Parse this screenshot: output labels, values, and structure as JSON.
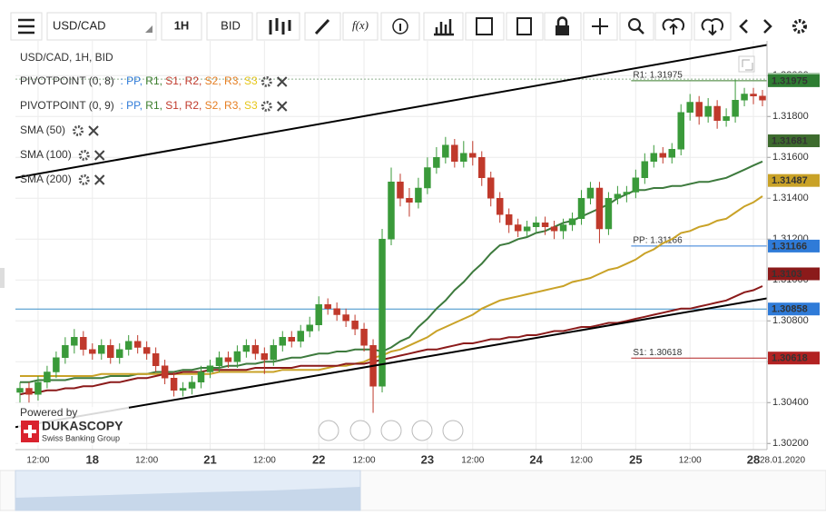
{
  "toolbar": {
    "symbol": "USD/CAD",
    "period": "1H",
    "side": "BID",
    "fx": "f(x)"
  },
  "legend": {
    "title": "USD/CAD, 1H, BID",
    "pivots": [
      {
        "name": "PIVOTPOINT (0, 8)",
        "levels": [
          {
            "text": ": PP,",
            "color": "#2f7bd8"
          },
          {
            "text": " R1,",
            "color": "#3a7d2c"
          },
          {
            "text": " S1,",
            "color": "#c0392b"
          },
          {
            "text": " R2,",
            "color": "#c0392b"
          },
          {
            "text": " S2,",
            "color": "#e67e22"
          },
          {
            "text": " R3,",
            "color": "#e67e22"
          },
          {
            "text": " S3",
            "color": "#e6c619"
          }
        ]
      },
      {
        "name": "PIVOTPOINT (0, 9)",
        "levels": [
          {
            "text": ": PP,",
            "color": "#2f7bd8"
          },
          {
            "text": " R1,",
            "color": "#3a7d2c"
          },
          {
            "text": " S1,",
            "color": "#c0392b"
          },
          {
            "text": " R2,",
            "color": "#c0392b"
          },
          {
            "text": " S2,",
            "color": "#e67e22"
          },
          {
            "text": " R3,",
            "color": "#e67e22"
          },
          {
            "text": " S3",
            "color": "#e6c619"
          }
        ]
      }
    ]
  },
  "branding": {
    "powered": "Powered by",
    "name": "DUKASCOPY",
    "tagline": "Swiss Banking Group"
  },
  "chart_data": {
    "type": "candlestick",
    "categories": [
      null,
      null,
      "12:00",
      null,
      null,
      null,
      null,
      null,
      "18",
      null,
      null,
      null,
      null,
      null,
      "12:00",
      null,
      null,
      null,
      null,
      null,
      null,
      "21",
      null,
      null,
      null,
      null,
      null,
      "12:00",
      null,
      null,
      null,
      null,
      null,
      "22",
      null,
      null,
      null,
      null,
      "12:00",
      null,
      null,
      null,
      null,
      null,
      null,
      "23",
      null,
      null,
      null,
      null,
      "12:00",
      null,
      null,
      null,
      null,
      null,
      null,
      "24",
      null,
      null,
      null,
      null,
      "12:00",
      null,
      null,
      null,
      null,
      null,
      "25",
      null,
      null,
      null,
      null,
      null,
      "12:00",
      null,
      null,
      null,
      null,
      null,
      null,
      "28",
      null
    ],
    "date_label": "28.01.2020",
    "up_color": "#3a9a3a",
    "down_color": "#c0392b",
    "candles": [
      [
        1.3045,
        1.305,
        1.304,
        1.3047
      ],
      [
        1.3047,
        1.305,
        1.304,
        1.3044
      ],
      [
        1.3044,
        1.3053,
        1.3041,
        1.305
      ],
      [
        1.305,
        1.3058,
        1.3047,
        1.3055
      ],
      [
        1.3055,
        1.3065,
        1.3052,
        1.3062
      ],
      [
        1.3062,
        1.3072,
        1.3059,
        1.3068
      ],
      [
        1.3068,
        1.3076,
        1.3064,
        1.3072
      ],
      [
        1.3072,
        1.3075,
        1.3063,
        1.3066
      ],
      [
        1.3066,
        1.3069,
        1.3061,
        1.3064
      ],
      [
        1.3064,
        1.3071,
        1.3061,
        1.3068
      ],
      [
        1.3068,
        1.3071,
        1.3059,
        1.3062
      ],
      [
        1.3062,
        1.3069,
        1.3059,
        1.3066
      ],
      [
        1.3066,
        1.3073,
        1.3063,
        1.307
      ],
      [
        1.307,
        1.3073,
        1.3064,
        1.3067
      ],
      [
        1.3067,
        1.307,
        1.3061,
        1.3064
      ],
      [
        1.3064,
        1.3067,
        1.3055,
        1.3058
      ],
      [
        1.3058,
        1.3061,
        1.3049,
        1.3052
      ],
      [
        1.3052,
        1.3055,
        1.3043,
        1.3046
      ],
      [
        1.3046,
        1.305,
        1.3043,
        1.3047
      ],
      [
        1.3047,
        1.3053,
        1.3044,
        1.305
      ],
      [
        1.305,
        1.3058,
        1.3047,
        1.3055
      ],
      [
        1.3055,
        1.3061,
        1.3052,
        1.3058
      ],
      [
        1.3058,
        1.3065,
        1.3055,
        1.3062
      ],
      [
        1.3062,
        1.3065,
        1.3057,
        1.306
      ],
      [
        1.306,
        1.3068,
        1.3057,
        1.3065
      ],
      [
        1.3065,
        1.3071,
        1.3062,
        1.3068
      ],
      [
        1.3068,
        1.3071,
        1.3061,
        1.3064
      ],
      [
        1.3064,
        1.3067,
        1.3054,
        1.3061
      ],
      [
        1.3061,
        1.3071,
        1.3058,
        1.3068
      ],
      [
        1.3068,
        1.3075,
        1.3065,
        1.3072
      ],
      [
        1.3072,
        1.3075,
        1.3067,
        1.307
      ],
      [
        1.307,
        1.3078,
        1.3067,
        1.3075
      ],
      [
        1.3075,
        1.3082,
        1.3072,
        1.3078
      ],
      [
        1.3078,
        1.3092,
        1.3075,
        1.3088
      ],
      [
        1.3088,
        1.3091,
        1.3083,
        1.3086
      ],
      [
        1.3086,
        1.3089,
        1.308,
        1.3083
      ],
      [
        1.3083,
        1.3086,
        1.3077,
        1.308
      ],
      [
        1.308,
        1.3083,
        1.3073,
        1.3076
      ],
      [
        1.3076,
        1.3079,
        1.3065,
        1.3068
      ],
      [
        1.3068,
        1.3071,
        1.3035,
        1.3048
      ],
      [
        1.3048,
        1.3125,
        1.3045,
        1.312
      ],
      [
        1.312,
        1.3155,
        1.3117,
        1.3148
      ],
      [
        1.3148,
        1.3152,
        1.3136,
        1.314
      ],
      [
        1.314,
        1.3145,
        1.3131,
        1.3138
      ],
      [
        1.3138,
        1.315,
        1.3135,
        1.3145
      ],
      [
        1.3145,
        1.316,
        1.3142,
        1.3155
      ],
      [
        1.3155,
        1.3165,
        1.3152,
        1.316
      ],
      [
        1.316,
        1.317,
        1.3157,
        1.3166
      ],
      [
        1.3166,
        1.3169,
        1.3155,
        1.3158
      ],
      [
        1.3158,
        1.3168,
        1.3155,
        1.3162
      ],
      [
        1.3162,
        1.3168,
        1.3156,
        1.316
      ],
      [
        1.316,
        1.3163,
        1.3146,
        1.315
      ],
      [
        1.315,
        1.3153,
        1.3136,
        1.314
      ],
      [
        1.314,
        1.3143,
        1.3128,
        1.3132
      ],
      [
        1.3132,
        1.3135,
        1.3123,
        1.3127
      ],
      [
        1.3127,
        1.313,
        1.3121,
        1.3124
      ],
      [
        1.3124,
        1.3129,
        1.3121,
        1.3126
      ],
      [
        1.3126,
        1.3131,
        1.3123,
        1.3128
      ],
      [
        1.3128,
        1.3131,
        1.3122,
        1.3126
      ],
      [
        1.3126,
        1.3129,
        1.312,
        1.3124
      ],
      [
        1.3124,
        1.313,
        1.312,
        1.3127
      ],
      [
        1.3127,
        1.3133,
        1.3124,
        1.313
      ],
      [
        1.313,
        1.3144,
        1.3127,
        1.314
      ],
      [
        1.314,
        1.3148,
        1.3137,
        1.3145
      ],
      [
        1.3145,
        1.3148,
        1.3118,
        1.3125
      ],
      [
        1.3125,
        1.3143,
        1.3122,
        1.314
      ],
      [
        1.314,
        1.3146,
        1.3137,
        1.3142
      ],
      [
        1.3142,
        1.3146,
        1.3138,
        1.3143
      ],
      [
        1.3143,
        1.3154,
        1.314,
        1.315
      ],
      [
        1.315,
        1.3162,
        1.3147,
        1.3158
      ],
      [
        1.3158,
        1.3166,
        1.3155,
        1.3162
      ],
      [
        1.3162,
        1.3165,
        1.3157,
        1.316
      ],
      [
        1.316,
        1.3167,
        1.3157,
        1.3164
      ],
      [
        1.3164,
        1.3186,
        1.3161,
        1.3182
      ],
      [
        1.3182,
        1.3191,
        1.3178,
        1.3187
      ],
      [
        1.3187,
        1.319,
        1.3176,
        1.318
      ],
      [
        1.318,
        1.3189,
        1.3177,
        1.3185
      ],
      [
        1.3185,
        1.3188,
        1.3174,
        1.3178
      ],
      [
        1.3178,
        1.3184,
        1.3175,
        1.318
      ],
      [
        1.318,
        1.3198,
        1.3177,
        1.3188
      ],
      [
        1.3188,
        1.3194,
        1.3185,
        1.3191
      ],
      [
        1.3191,
        1.3194,
        1.3186,
        1.319
      ],
      [
        1.319,
        1.3193,
        1.3185,
        1.3188
      ]
    ],
    "series": [
      {
        "name": "SMA (50)",
        "color": "#3d7a3d",
        "values": [
          1.305,
          1.305,
          1.3051,
          1.3051,
          1.3051,
          1.3051,
          1.3052,
          1.3052,
          1.3052,
          1.3052,
          1.3053,
          1.3053,
          1.3053,
          1.3054,
          1.3054,
          1.3055,
          1.3055,
          1.3055,
          1.3056,
          1.3056,
          1.3057,
          1.3057,
          1.3057,
          1.3058,
          1.3058,
          1.3059,
          1.3059,
          1.306,
          1.306,
          1.3061,
          1.3062,
          1.3062,
          1.3063,
          1.3064,
          1.3064,
          1.3065,
          1.3065,
          1.3066,
          1.3066,
          1.3066,
          1.3065,
          1.3067,
          1.307,
          1.3072,
          1.3077,
          1.3081,
          1.3086,
          1.309,
          1.3095,
          1.3099,
          1.3104,
          1.3108,
          1.3113,
          1.3117,
          1.3118,
          1.312,
          1.3121,
          1.3123,
          1.3124,
          1.3126,
          1.3128,
          1.3129,
          1.3131,
          1.3133,
          1.3135,
          1.3137,
          1.314,
          1.3142,
          1.3144,
          1.3144,
          1.3145,
          1.3145,
          1.3146,
          1.3146,
          1.3147,
          1.3148,
          1.3148,
          1.3149,
          1.315,
          1.3152,
          1.3154,
          1.3156,
          1.3158
        ]
      },
      {
        "name": "SMA (100)",
        "color": "#c9a227",
        "values": [
          1.3053,
          1.3053,
          1.3053,
          1.3053,
          1.3053,
          1.3053,
          1.3053,
          1.3053,
          1.3053,
          1.3054,
          1.3054,
          1.3054,
          1.3054,
          1.3054,
          1.3054,
          1.3054,
          1.3054,
          1.3054,
          1.3054,
          1.3054,
          1.3054,
          1.3054,
          1.3055,
          1.3055,
          1.3055,
          1.3055,
          1.3055,
          1.3055,
          1.3055,
          1.3056,
          1.3056,
          1.3056,
          1.3056,
          1.3056,
          1.3057,
          1.3058,
          1.3058,
          1.3059,
          1.306,
          1.3062,
          1.3063,
          1.3065,
          1.3066,
          1.3068,
          1.307,
          1.3072,
          1.3075,
          1.3077,
          1.3079,
          1.3081,
          1.3083,
          1.3086,
          1.3088,
          1.309,
          1.3091,
          1.3092,
          1.3093,
          1.3094,
          1.3095,
          1.3096,
          1.3097,
          1.3099,
          1.31,
          1.3101,
          1.3103,
          1.3105,
          1.3106,
          1.3108,
          1.311,
          1.3113,
          1.3115,
          1.3118,
          1.312,
          1.3123,
          1.3124,
          1.3126,
          1.3127,
          1.3129,
          1.313,
          1.3133,
          1.3136,
          1.3138,
          1.3141
        ]
      },
      {
        "name": "SMA (200)",
        "color": "#8b1a1a",
        "values": [
          1.3044,
          1.3045,
          1.3045,
          1.3046,
          1.3046,
          1.3047,
          1.3047,
          1.3048,
          1.3048,
          1.3049,
          1.305,
          1.305,
          1.3051,
          1.3052,
          1.3052,
          1.3053,
          1.3054,
          1.3054,
          1.3055,
          1.3055,
          1.3055,
          1.3056,
          1.3056,
          1.3056,
          1.3056,
          1.3056,
          1.3057,
          1.3057,
          1.3057,
          1.3057,
          1.3057,
          1.3058,
          1.3058,
          1.3058,
          1.3058,
          1.3058,
          1.3059,
          1.3059,
          1.3059,
          1.306,
          1.3061,
          1.3062,
          1.3063,
          1.3064,
          1.3065,
          1.3066,
          1.3066,
          1.3067,
          1.3068,
          1.3069,
          1.3069,
          1.307,
          1.3071,
          1.3071,
          1.3072,
          1.3072,
          1.3073,
          1.3073,
          1.3074,
          1.3075,
          1.3075,
          1.3076,
          1.3077,
          1.3077,
          1.3078,
          1.3079,
          1.3079,
          1.308,
          1.3081,
          1.3082,
          1.3083,
          1.3084,
          1.3085,
          1.3086,
          1.3086,
          1.3087,
          1.3088,
          1.3089,
          1.309,
          1.3092,
          1.3094,
          1.3095,
          1.3097
        ]
      }
    ],
    "trendlines": [
      {
        "start": 1.315,
        "end": 1.3215,
        "color": "#000000"
      },
      {
        "start": 1.3028,
        "end": 1.3091,
        "color": "#000000"
      }
    ],
    "pivots": [
      {
        "text": "R1: 1.31975",
        "value": 1.31975,
        "color": "#3a7d2c"
      },
      {
        "text": "PP: 1.31166",
        "value": 1.31166,
        "color": "#2f7bd8"
      },
      {
        "text": "S1: 1.30618",
        "value": 1.30618,
        "color": "#b22222"
      }
    ],
    "pivot_from": "25",
    "price_line": {
      "value": 1.30858,
      "color": "#3a8fc8"
    },
    "dotted_line": {
      "value": 1.31983,
      "color": "#8fb08f"
    },
    "price_markers": [
      {
        "value": 1.31983,
        "color": "#a9c9a9"
      },
      {
        "value": 1.31975,
        "color": "#2e7d32"
      },
      {
        "value": 1.31681,
        "color": "#3d6b2e"
      },
      {
        "value": 1.31487,
        "color": "#c9a227"
      },
      {
        "value": 1.31166,
        "color": "#2f7bd8"
      },
      {
        "value": 1.3103,
        "color": "#8b1a1a"
      },
      {
        "value": 1.30858,
        "color": "#2f7bd8"
      },
      {
        "value": 1.30618,
        "color": "#b22222"
      }
    ],
    "ylim": [
      1.3017,
      1.3217
    ],
    "yticks": [
      {
        "value": 1.302,
        "label": "1.30200"
      },
      {
        "value": 1.304,
        "label": "1.30400"
      },
      {
        "value": 1.306,
        "label": "1.30600"
      },
      {
        "value": 1.308,
        "label": "1.30800"
      },
      {
        "value": 1.31,
        "label": "1.31000"
      },
      {
        "value": 1.312,
        "label": "1.31200"
      },
      {
        "value": 1.314,
        "label": "1.31400"
      },
      {
        "value": 1.316,
        "label": "1.31600"
      },
      {
        "value": 1.318,
        "label": "1.31800"
      },
      {
        "value": 1.32,
        "label": "1.32000"
      }
    ],
    "grid": true
  }
}
